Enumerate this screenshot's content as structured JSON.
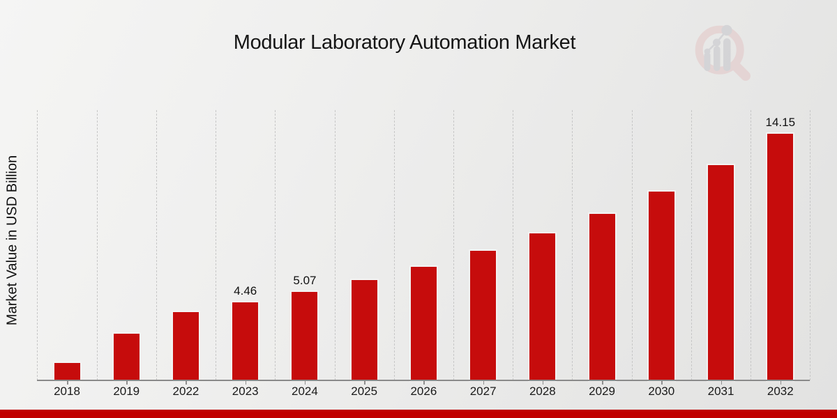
{
  "chart_data": {
    "type": "bar",
    "title": "Modular Laboratory Automation Market",
    "xlabel": "",
    "ylabel": "Market Value in USD Billion",
    "categories": [
      "2018",
      "2019",
      "2022",
      "2023",
      "2024",
      "2025",
      "2026",
      "2027",
      "2028",
      "2029",
      "2030",
      "2031",
      "2032"
    ],
    "values": [
      1.0,
      2.68,
      3.92,
      4.46,
      5.07,
      5.75,
      6.51,
      7.43,
      8.43,
      9.55,
      10.83,
      12.35,
      14.15
    ],
    "data_labels": [
      null,
      null,
      null,
      "4.46",
      "5.07",
      null,
      null,
      null,
      null,
      null,
      null,
      null,
      "14.15"
    ],
    "ylim": [
      0,
      15.5
    ],
    "grid": "vertical-dashed",
    "legend": "none",
    "bar_color": "#c60c0c"
  },
  "branding": {
    "logo_icon": "magnifier-bar-chart-watermark",
    "accent_bar_color": "#c00000",
    "logo_ring_color": "#e3c6c6",
    "logo_bar_color": "#c4c4ca"
  }
}
